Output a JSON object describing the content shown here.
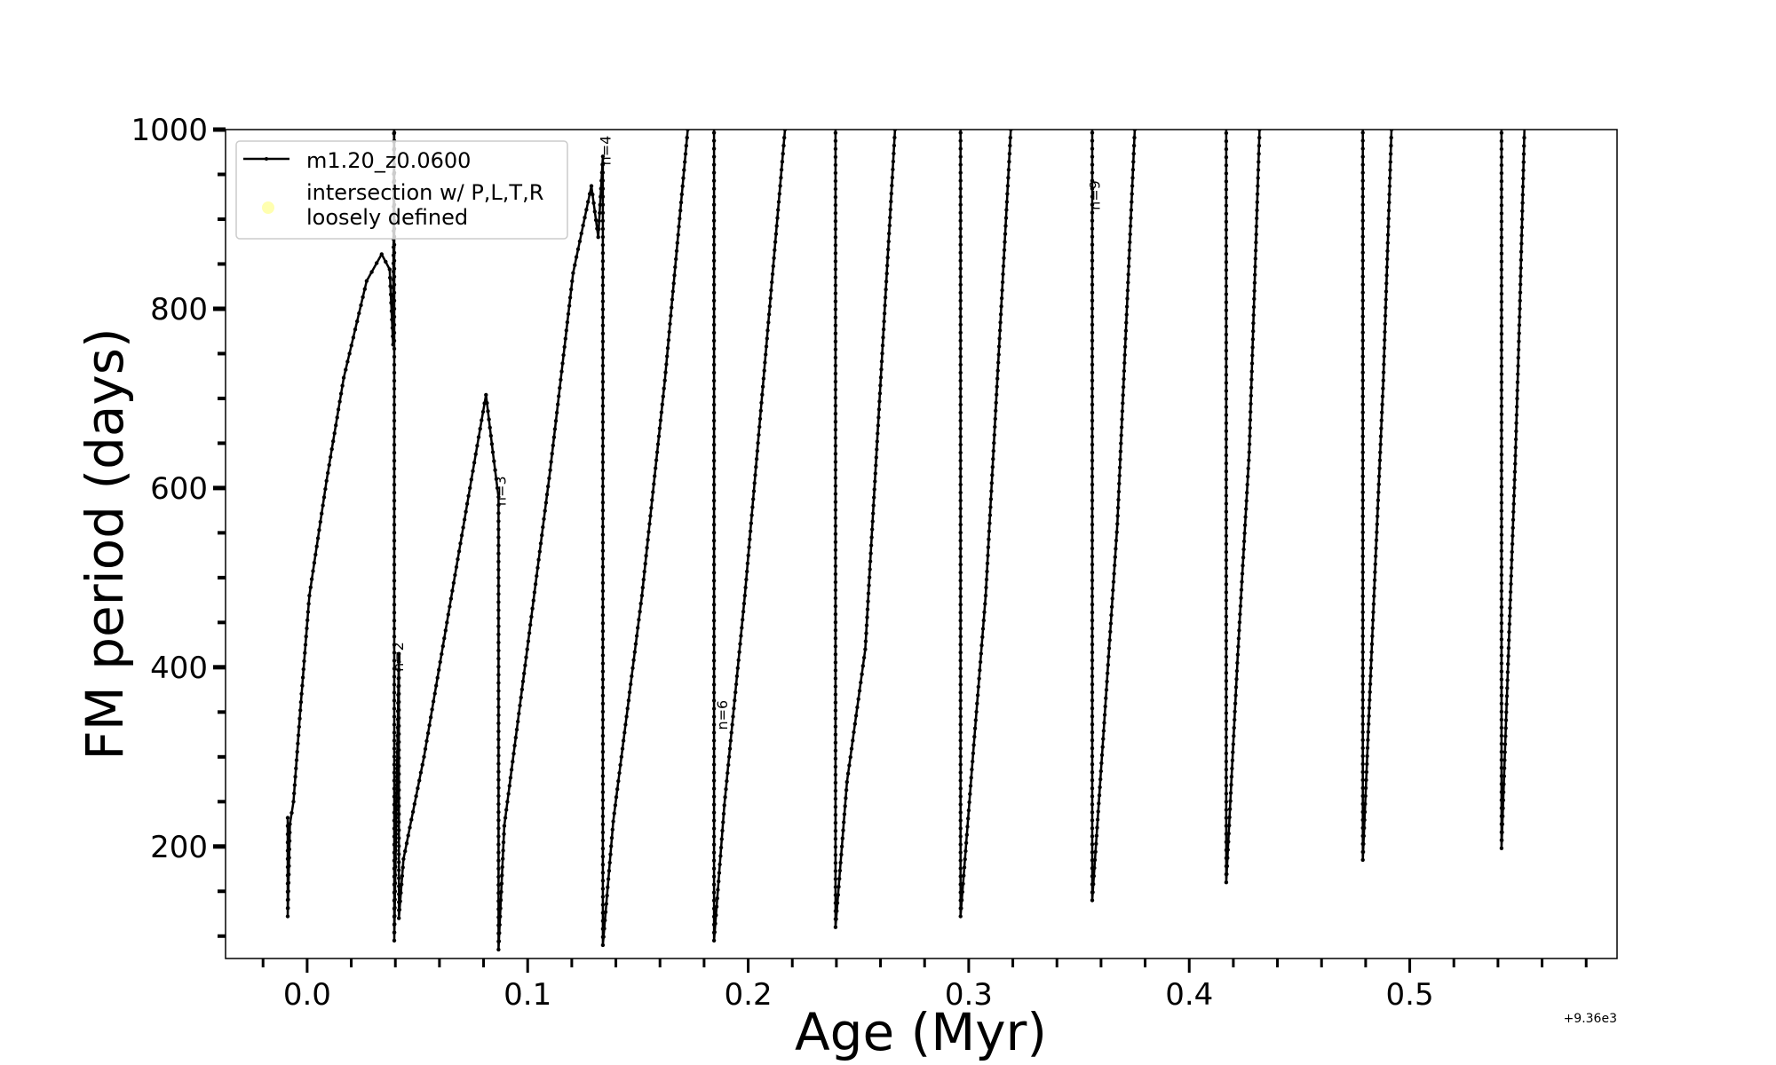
{
  "chart_data": {
    "type": "line",
    "title": "",
    "xlabel": "Age (Myr)",
    "ylabel": "FM period (days)",
    "x_offset_text": "+9.36e3",
    "xlim": [
      -0.037,
      0.594
    ],
    "ylim": [
      75,
      1000
    ],
    "grid": false,
    "legend_placement": "top-left",
    "x_ticks": [
      0.0,
      0.1,
      0.2,
      0.3,
      0.4,
      0.5
    ],
    "x_tick_labels": [
      "0.0",
      "0.1",
      "0.2",
      "0.3",
      "0.4",
      "0.5"
    ],
    "y_ticks": [
      200,
      400,
      600,
      800,
      1000
    ],
    "y_tick_labels": [
      "200",
      "400",
      "600",
      "800",
      "1000"
    ],
    "x_minor_step": 0.02,
    "y_minor_step": 50,
    "legend": [
      {
        "label": "m1.20_z0.0600",
        "type": "line-marker",
        "color": "#000000"
      },
      {
        "label_lines": [
          "intersection w/ P,L,T,R",
          "loosely defined"
        ],
        "type": "marker",
        "color": "#ffffb0"
      }
    ],
    "annotations": [
      {
        "text": "n=2",
        "x": 0.0435,
        "y": 395
      },
      {
        "text": "n=3",
        "x": 0.09,
        "y": 580
      },
      {
        "text": "n=4",
        "x": 0.1375,
        "y": 960
      },
      {
        "text": "n=6",
        "x": 0.1905,
        "y": 330
      },
      {
        "text": "n=9",
        "x": 0.3595,
        "y": 910
      }
    ],
    "series": [
      {
        "name": "m1.20_z0.0600",
        "color": "#000000",
        "points": [
          [
            -0.0088,
            232
          ],
          [
            -0.0088,
            122
          ],
          [
            -0.0078,
            225
          ],
          [
            -0.0062,
            250
          ],
          [
            -0.0031,
            352
          ],
          [
            0.001,
            480
          ],
          [
            0.0088,
            608
          ],
          [
            0.0166,
            723
          ],
          [
            0.027,
            831
          ],
          [
            0.0338,
            861
          ],
          [
            0.0374,
            844
          ],
          [
            0.039,
            760
          ],
          [
            0.0395,
            1050
          ],
          [
            0.0395,
            95
          ],
          [
            0.0416,
            415
          ],
          [
            0.0416,
            120
          ],
          [
            0.0437,
            186
          ],
          [
            0.053,
            300
          ],
          [
            0.0634,
            450
          ],
          [
            0.0738,
            600
          ],
          [
            0.0811,
            704
          ],
          [
            0.0842,
            640
          ],
          [
            0.0868,
            590
          ],
          [
            0.0868,
            85
          ],
          [
            0.0894,
            223
          ],
          [
            0.0998,
            420
          ],
          [
            0.1102,
            620
          ],
          [
            0.1206,
            840
          ],
          [
            0.1289,
            937
          ],
          [
            0.132,
            880
          ],
          [
            0.1341,
            970
          ],
          [
            0.1341,
            90
          ],
          [
            0.1388,
            228
          ],
          [
            0.1518,
            480
          ],
          [
            0.1622,
            720
          ],
          [
            0.1726,
            1000
          ],
          [
            0.1845,
            1050
          ],
          [
            0.1845,
            95
          ],
          [
            0.1892,
            246
          ],
          [
            0.1985,
            480
          ],
          [
            0.2167,
            1000
          ],
          [
            0.2396,
            1050
          ],
          [
            0.2396,
            110
          ],
          [
            0.2448,
            272
          ],
          [
            0.2531,
            420
          ],
          [
            0.2666,
            1000
          ],
          [
            0.2963,
            1050
          ],
          [
            0.2963,
            122
          ],
          [
            0.302,
            304
          ],
          [
            0.3077,
            480
          ],
          [
            0.3191,
            1000
          ],
          [
            0.356,
            1050
          ],
          [
            0.356,
            140
          ],
          [
            0.3617,
            347
          ],
          [
            0.3674,
            560
          ],
          [
            0.3753,
            1000
          ],
          [
            0.4168,
            1050
          ],
          [
            0.4168,
            160
          ],
          [
            0.422,
            414
          ],
          [
            0.4272,
            640
          ],
          [
            0.4319,
            1000
          ],
          [
            0.4787,
            1050
          ],
          [
            0.4787,
            185
          ],
          [
            0.4844,
            515
          ],
          [
            0.488,
            720
          ],
          [
            0.4917,
            1000
          ],
          [
            0.5416,
            1050
          ],
          [
            0.5416,
            198
          ],
          [
            0.5478,
            627
          ],
          [
            0.5499,
            800
          ],
          [
            0.552,
            1000
          ]
        ]
      }
    ]
  }
}
